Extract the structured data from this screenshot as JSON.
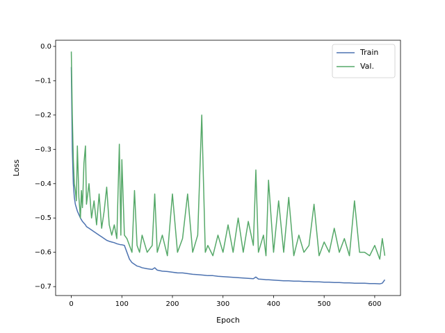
{
  "chart_data": {
    "type": "line",
    "x_label": "Epoch",
    "y_label": "Loss",
    "x": [
      0,
      2,
      4,
      6,
      8,
      10,
      12,
      15,
      18,
      20,
      22,
      25,
      28,
      30,
      35,
      40,
      45,
      50,
      55,
      60,
      65,
      70,
      75,
      80,
      85,
      90,
      95,
      98,
      100,
      105,
      110,
      115,
      120,
      125,
      130,
      135,
      140,
      150,
      160,
      165,
      170,
      180,
      190,
      200,
      210,
      220,
      230,
      240,
      250,
      258,
      265,
      270,
      280,
      290,
      300,
      310,
      320,
      330,
      340,
      350,
      360,
      365,
      370,
      380,
      385,
      390,
      400,
      410,
      420,
      430,
      440,
      450,
      460,
      470,
      480,
      490,
      500,
      510,
      520,
      530,
      540,
      550,
      560,
      570,
      580,
      590,
      600,
      610,
      615,
      620
    ],
    "series": [
      {
        "name": "Train",
        "color": "#4c72b0",
        "values": [
          -0.06,
          -0.3,
          -0.4,
          -0.44,
          -0.46,
          -0.47,
          -0.48,
          -0.49,
          -0.5,
          -0.505,
          -0.51,
          -0.515,
          -0.52,
          -0.525,
          -0.53,
          -0.535,
          -0.54,
          -0.545,
          -0.55,
          -0.555,
          -0.56,
          -0.565,
          -0.568,
          -0.57,
          -0.572,
          -0.575,
          -0.577,
          -0.578,
          -0.578,
          -0.58,
          -0.6,
          -0.62,
          -0.63,
          -0.635,
          -0.64,
          -0.642,
          -0.645,
          -0.648,
          -0.65,
          -0.645,
          -0.652,
          -0.655,
          -0.656,
          -0.658,
          -0.66,
          -0.66,
          -0.662,
          -0.664,
          -0.665,
          -0.666,
          -0.667,
          -0.668,
          -0.668,
          -0.67,
          -0.671,
          -0.672,
          -0.673,
          -0.674,
          -0.675,
          -0.676,
          -0.677,
          -0.672,
          -0.678,
          -0.679,
          -0.68,
          -0.68,
          -0.681,
          -0.682,
          -0.683,
          -0.683,
          -0.684,
          -0.684,
          -0.685,
          -0.685,
          -0.686,
          -0.686,
          -0.687,
          -0.687,
          -0.688,
          -0.688,
          -0.689,
          -0.689,
          -0.69,
          -0.69,
          -0.69,
          -0.691,
          -0.691,
          -0.692,
          -0.69,
          -0.68
        ]
      },
      {
        "name": "Val.",
        "color": "#55a868",
        "values": [
          -0.015,
          -0.2,
          -0.33,
          -0.4,
          -0.42,
          -0.45,
          -0.29,
          -0.44,
          -0.5,
          -0.42,
          -0.47,
          -0.34,
          -0.29,
          -0.46,
          -0.4,
          -0.5,
          -0.45,
          -0.52,
          -0.43,
          -0.53,
          -0.48,
          -0.41,
          -0.52,
          -0.55,
          -0.52,
          -0.56,
          -0.285,
          -0.55,
          -0.33,
          -0.55,
          -0.56,
          -0.58,
          -0.6,
          -0.42,
          -0.58,
          -0.6,
          -0.55,
          -0.6,
          -0.58,
          -0.43,
          -0.6,
          -0.55,
          -0.61,
          -0.43,
          -0.6,
          -0.56,
          -0.43,
          -0.6,
          -0.55,
          -0.2,
          -0.6,
          -0.58,
          -0.61,
          -0.55,
          -0.6,
          -0.52,
          -0.6,
          -0.5,
          -0.6,
          -0.51,
          -0.58,
          -0.36,
          -0.6,
          -0.55,
          -0.61,
          -0.39,
          -0.6,
          -0.45,
          -0.6,
          -0.44,
          -0.61,
          -0.55,
          -0.6,
          -0.58,
          -0.46,
          -0.61,
          -0.57,
          -0.6,
          -0.53,
          -0.6,
          -0.56,
          -0.61,
          -0.45,
          -0.6,
          -0.6,
          -0.61,
          -0.58,
          -0.62,
          -0.56,
          -0.61
        ]
      }
    ],
    "xlim": [
      -31,
      651
    ],
    "ylim": [
      -0.726,
      0.018
    ],
    "xticks": [
      0,
      100,
      200,
      300,
      400,
      500,
      600
    ],
    "yticks": [
      {
        "value": 0,
        "label": "0.0"
      },
      {
        "value": -0.1,
        "label": "−0.1"
      },
      {
        "value": -0.2,
        "label": "−0.2"
      },
      {
        "value": -0.3,
        "label": "−0.3"
      },
      {
        "value": -0.4,
        "label": "−0.4"
      },
      {
        "value": -0.5,
        "label": "−0.5"
      },
      {
        "value": -0.6,
        "label": "−0.6"
      },
      {
        "value": -0.7,
        "label": "−0.7"
      }
    ],
    "grid": false,
    "legend": "upper right"
  }
}
